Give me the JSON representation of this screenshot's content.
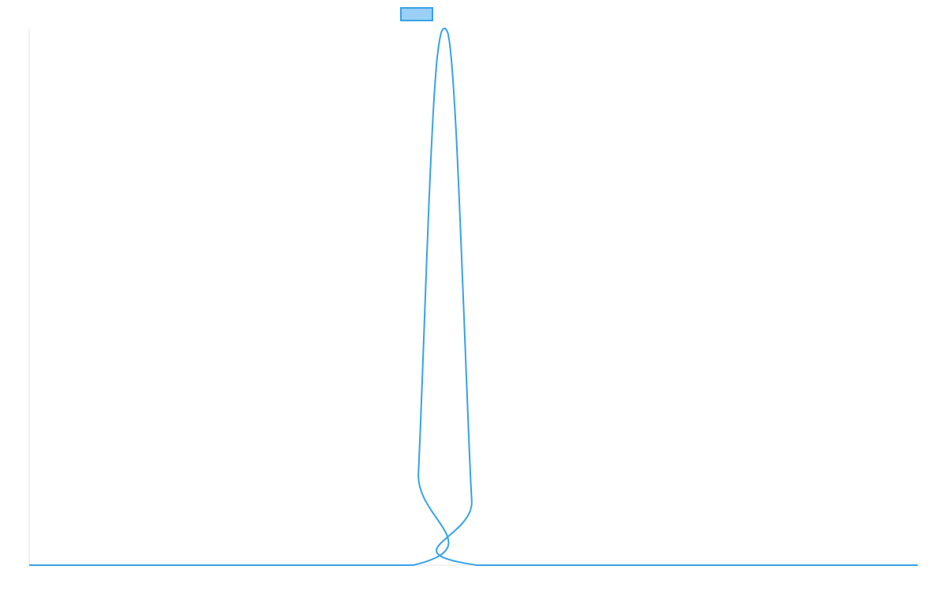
{
  "chart_data": {
    "type": "line",
    "title": "",
    "xlabel": "",
    "ylabel": "",
    "grid": false,
    "legend": {
      "placement": "top-center",
      "entries": [
        {
          "label": "",
          "color": "#9ad0f5",
          "stroke": "#36a2eb"
        }
      ]
    },
    "xlim": [
      0,
      100
    ],
    "ylim": [
      0,
      1
    ],
    "series": [
      {
        "color": "#36a2eb",
        "x": [
          0,
          43.2,
          43.8,
          44.4,
          45.0,
          45.6,
          46.2,
          46.8,
          47.4,
          48.0,
          48.6,
          49.2,
          49.8,
          50.4,
          100
        ],
        "y": [
          0,
          0,
          0.17,
          0.42,
          0.68,
          0.88,
          0.98,
          1.0,
          0.96,
          0.82,
          0.6,
          0.35,
          0.12,
          0,
          0
        ]
      }
    ]
  },
  "colors": {
    "line": "#36a2eb",
    "legend_fill": "#9ad0f5",
    "axis": "#e6e6e6"
  }
}
